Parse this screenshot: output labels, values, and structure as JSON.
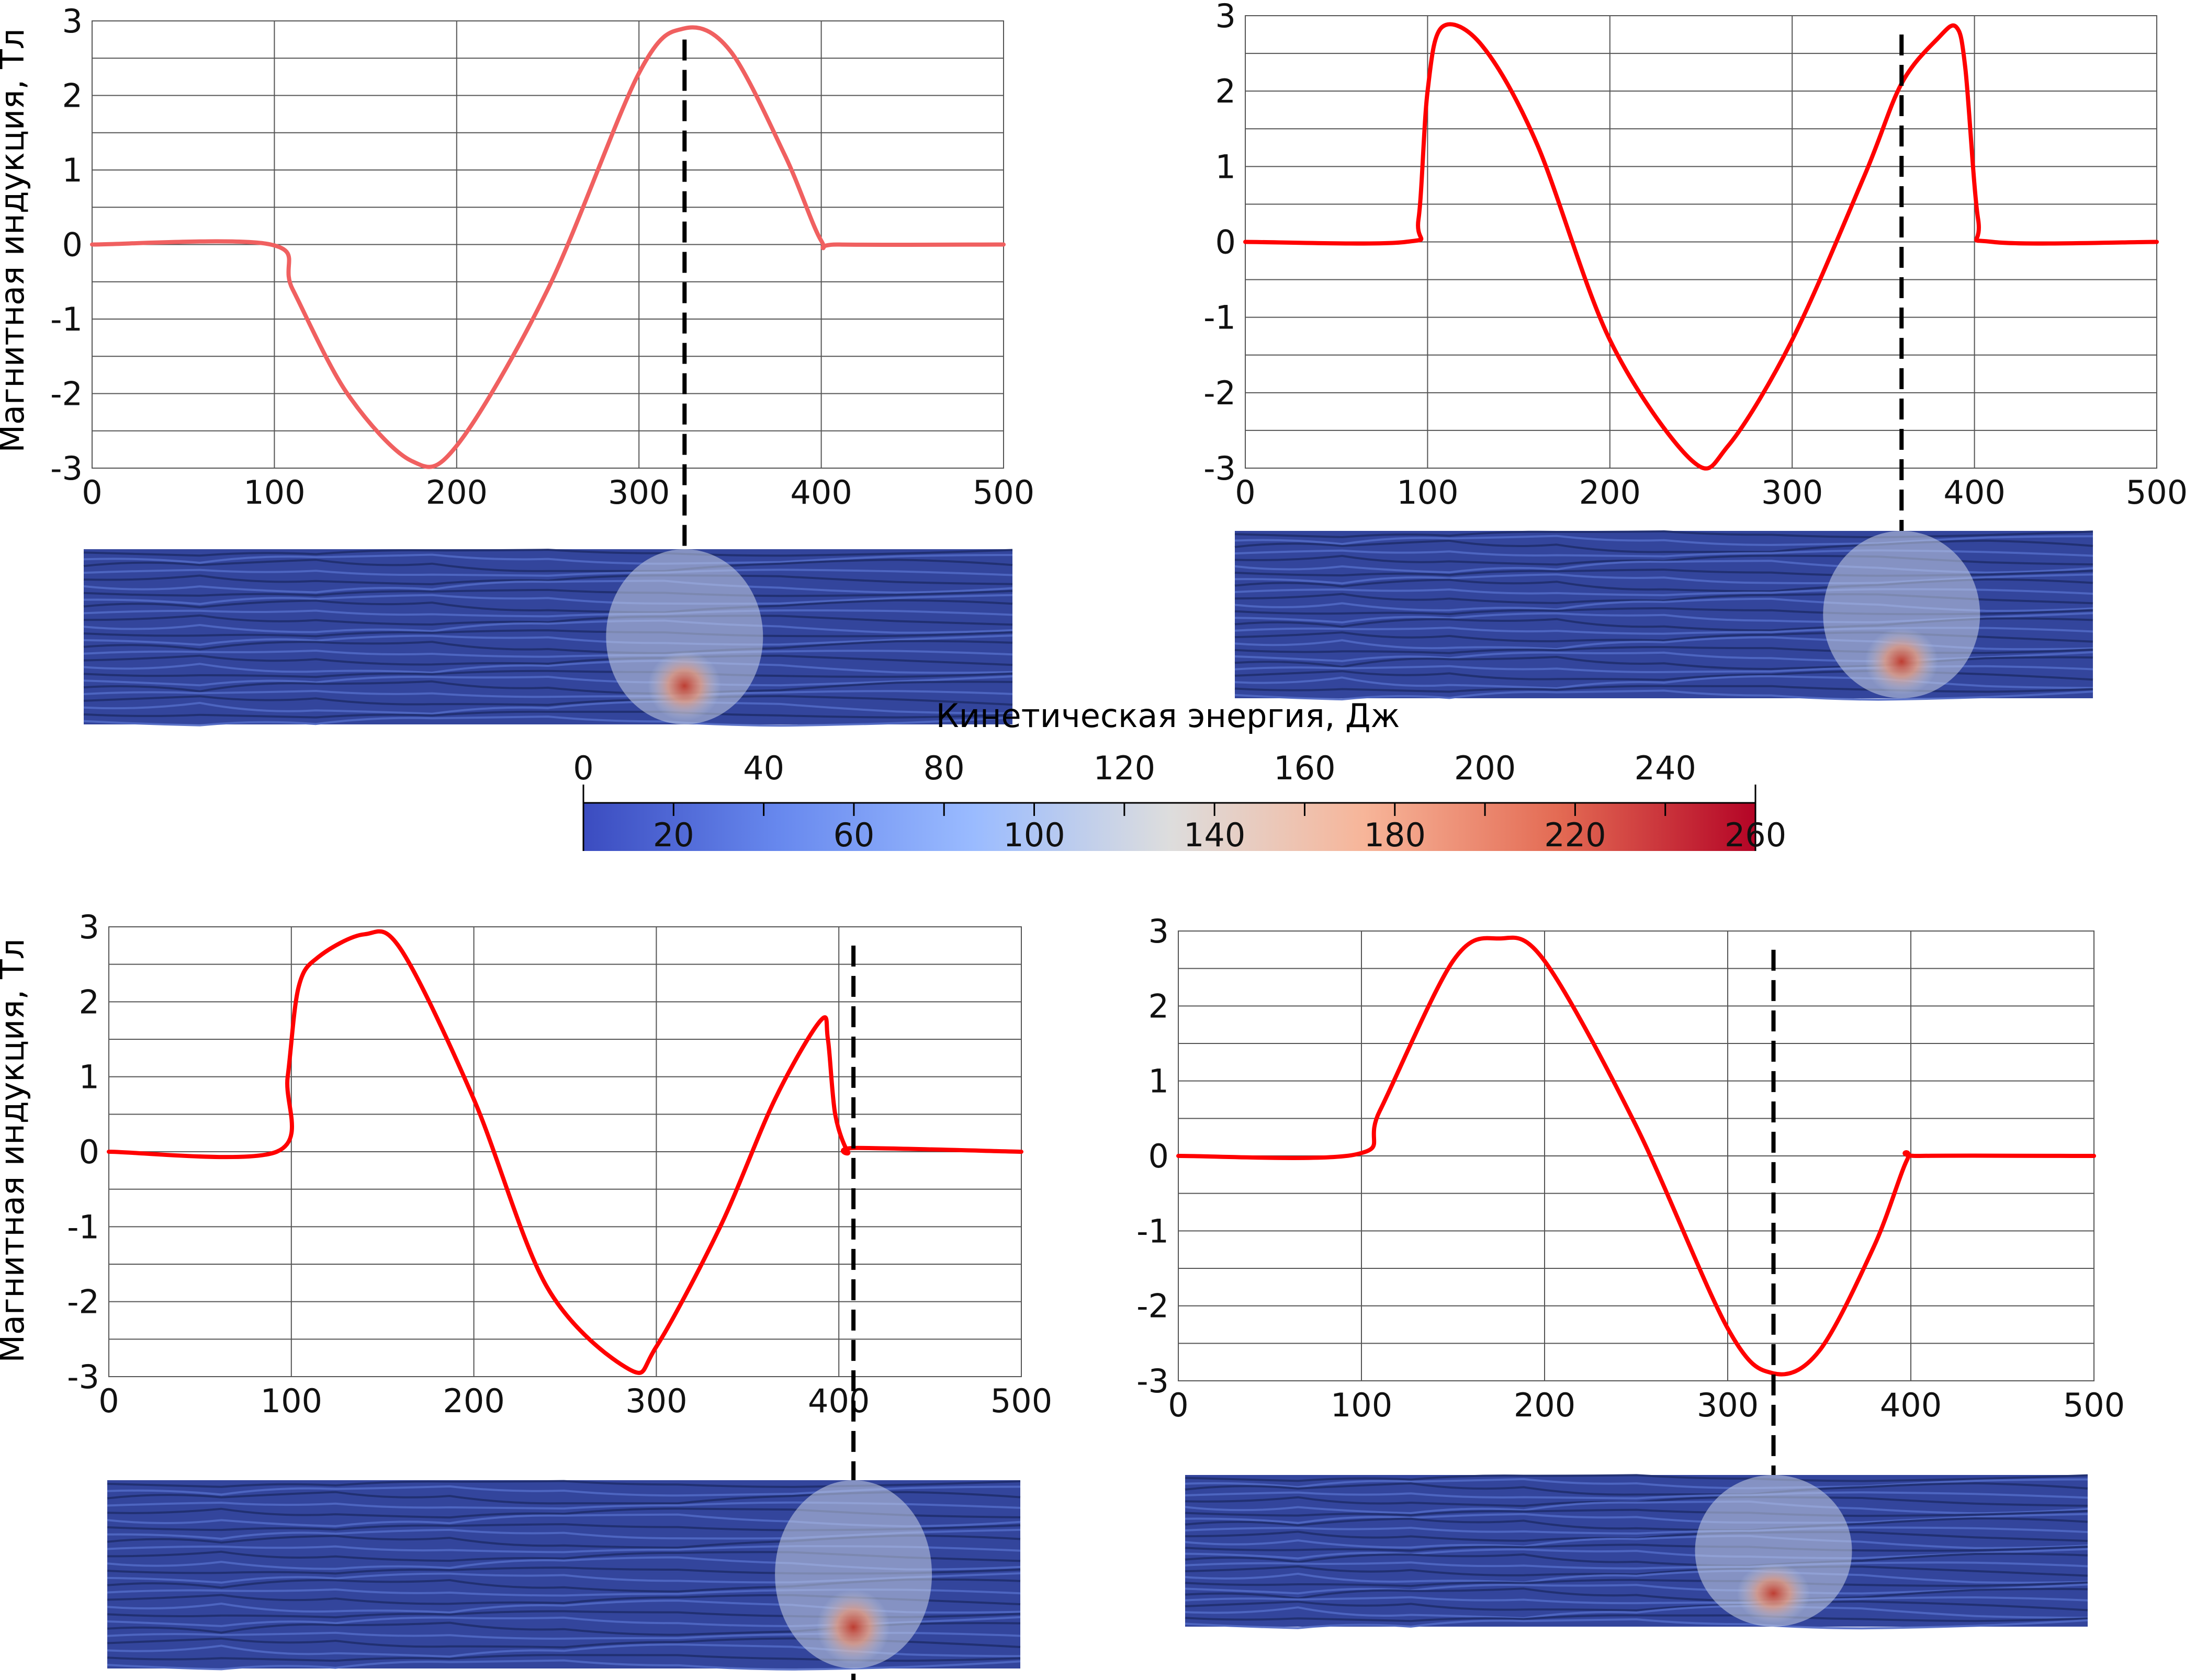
{
  "y_axis_label": "Магнитная индукция, Тл",
  "colorbar": {
    "title": "Кинетическая энергия, Дж",
    "top_ticks": [
      "0",
      "40",
      "80",
      "120",
      "160",
      "200",
      "240"
    ],
    "bottom_ticks": [
      "20",
      "60",
      "100",
      "140",
      "180",
      "220",
      "260"
    ],
    "range": [
      0,
      260
    ],
    "colors": [
      "#3b4cc0",
      "#6788ee",
      "#9abbff",
      "#dddddd",
      "#f7b599",
      "#e36a53",
      "#b40426"
    ]
  },
  "colors": {
    "curve": "#ff0000",
    "curve_light": "#f06060",
    "cursor": "#000000",
    "grid": "#555555"
  },
  "chart_data": [
    {
      "type": "line",
      "xlim": [
        0,
        500
      ],
      "ylim": [
        -3,
        3
      ],
      "x_ticks": [
        "0",
        "100",
        "200",
        "300",
        "400",
        "500"
      ],
      "y_ticks": [
        "3",
        "2",
        "1",
        "0",
        "-1",
        "-2",
        "-3"
      ],
      "cursor_x": 325,
      "series": [
        {
          "color": "#f06060",
          "x": [
            0,
            98,
            110,
            140,
            175,
            200,
            250,
            300,
            325,
            350,
            380,
            400,
            410,
            500
          ],
          "y": [
            0,
            0,
            -0.6,
            -2.0,
            -2.9,
            -2.7,
            -0.6,
            2.3,
            2.9,
            2.6,
            1.2,
            0.05,
            0,
            0
          ]
        }
      ]
    },
    {
      "type": "line",
      "xlim": [
        0,
        500
      ],
      "ylim": [
        -3,
        3
      ],
      "x_ticks": [
        "0",
        "100",
        "200",
        "300",
        "400",
        "500"
      ],
      "y_ticks": [
        "3",
        "2",
        "1",
        "0",
        "-1",
        "-2",
        "-3"
      ],
      "cursor_x": 360,
      "series": [
        {
          "color": "#ff0000",
          "x": [
            0,
            88,
            95,
            100,
            108,
            130,
            160,
            200,
            245,
            265,
            300,
            340,
            360,
            380,
            390,
            395,
            402,
            410,
            500
          ],
          "y": [
            0,
            0,
            0.3,
            2.0,
            2.85,
            2.6,
            1.3,
            -1.3,
            -2.9,
            -2.7,
            -1.3,
            0.9,
            2.1,
            2.7,
            2.85,
            2.3,
            0.3,
            0,
            0
          ]
        }
      ]
    },
    {
      "type": "line",
      "xlim": [
        0,
        500
      ],
      "ylim": [
        -3,
        3
      ],
      "x_ticks": [
        "0",
        "100",
        "200",
        "300",
        "400",
        "500"
      ],
      "y_ticks": [
        "3",
        "2",
        "1",
        "0",
        "-1",
        "-2",
        "-3"
      ],
      "cursor_x": 408,
      "series": [
        {
          "color": "#ff0000",
          "x": [
            0,
            92,
            98,
            104,
            115,
            140,
            160,
            200,
            240,
            285,
            300,
            335,
            365,
            390,
            394,
            398,
            405,
            410,
            500
          ],
          "y": [
            0,
            0,
            1.0,
            2.2,
            2.6,
            2.9,
            2.7,
            0.7,
            -1.8,
            -2.9,
            -2.6,
            -1.0,
            0.7,
            1.75,
            1.5,
            0.5,
            0,
            0.05,
            0
          ]
        }
      ]
    },
    {
      "type": "line",
      "xlim": [
        0,
        500
      ],
      "ylim": [
        -3,
        3
      ],
      "x_ticks": [
        "0",
        "100",
        "200",
        "300",
        "400",
        "500"
      ],
      "y_ticks": [
        "3",
        "2",
        "1",
        "0",
        "-1",
        "-2",
        "-3"
      ],
      "cursor_x": 325,
      "series": [
        {
          "color": "#ff0000",
          "x": [
            0,
            97,
            110,
            150,
            175,
            200,
            250,
            300,
            325,
            350,
            380,
            398,
            405,
            500
          ],
          "y": [
            0,
            0.02,
            0.6,
            2.6,
            2.9,
            2.6,
            0.4,
            -2.3,
            -2.9,
            -2.6,
            -1.2,
            -0.05,
            0,
            0
          ]
        }
      ]
    }
  ]
}
